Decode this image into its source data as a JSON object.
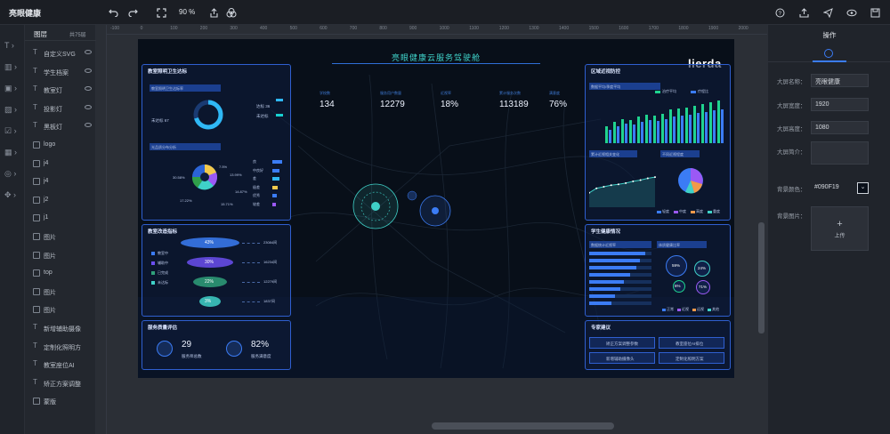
{
  "app": {
    "title": "亮眼健康",
    "zoom": "90 %"
  },
  "toolbar_icons": [
    "undo-icon",
    "redo-icon",
    "fullscreen-icon",
    "export-icon",
    "layers-group-icon",
    "help-icon",
    "upload-icon",
    "send-icon",
    "preview-icon",
    "save-icon"
  ],
  "layers": {
    "title": "图层",
    "count": "共75层",
    "items": [
      {
        "label": "自定义SVG",
        "icon": "text-icon"
      },
      {
        "label": "学生档案",
        "icon": "text-icon"
      },
      {
        "label": "教室灯",
        "icon": "text-icon"
      },
      {
        "label": "投影灯",
        "icon": "text-icon"
      },
      {
        "label": "黑板灯",
        "icon": "text-icon"
      },
      {
        "label": "logo",
        "icon": "image-icon"
      },
      {
        "label": "j4",
        "icon": "image-icon"
      },
      {
        "label": "j4",
        "icon": "image-icon"
      },
      {
        "label": "j2",
        "icon": "image-icon"
      },
      {
        "label": "j1",
        "icon": "image-icon"
      },
      {
        "label": "图片",
        "icon": "image-icon"
      },
      {
        "label": "图片",
        "icon": "image-icon"
      },
      {
        "label": "top",
        "icon": "image-icon"
      },
      {
        "label": "图片",
        "icon": "image-icon"
      },
      {
        "label": "图片",
        "icon": "image-icon"
      },
      {
        "label": "新增辅助摄像",
        "icon": "text-icon"
      },
      {
        "label": "定制化照明方",
        "icon": "text-icon"
      },
      {
        "label": "教室座位AI",
        "icon": "text-icon"
      },
      {
        "label": "矫正方案调整",
        "icon": "text-icon"
      },
      {
        "label": "蒙版",
        "icon": "image-icon"
      }
    ]
  },
  "ruler": {
    "ticks": [
      "-100",
      "0",
      "100",
      "200",
      "300",
      "400",
      "500",
      "600",
      "700",
      "800",
      "900",
      "1000",
      "1100",
      "1200",
      "1300",
      "1400",
      "1500",
      "1600",
      "1700",
      "1800",
      "1900",
      "2000"
    ]
  },
  "right": {
    "title": "操作",
    "fields": [
      {
        "label": "大屏名称：",
        "value": "亮眼健康"
      },
      {
        "label": "大屏宽度：",
        "value": "1920"
      },
      {
        "label": "大屏高度：",
        "value": "1080"
      },
      {
        "label": "大屏简介：",
        "value": ""
      },
      {
        "label": "背景颜色：",
        "value": "#090F19"
      },
      {
        "label": "背景图片：",
        "value": ""
      }
    ],
    "upload": "上传"
  },
  "dash": {
    "title": "亮眼健康云服务驾驶舱",
    "logo": "lierda",
    "stats": [
      {
        "label": "学校数",
        "value": "134"
      },
      {
        "label": "服务用户数量",
        "value": "12279"
      },
      {
        "label": "近视率",
        "value": "18%"
      },
      {
        "label": "累计服务次数",
        "value": "113189"
      },
      {
        "label": "满意度",
        "value": "76%"
      }
    ],
    "p1": {
      "title": "教室照明卫生达标",
      "sub1": "教室照明卫生达标率",
      "donut_center": "未达标 67",
      "legend": [
        "达标 36",
        "未达标"
      ],
      "sub2": "光品质分布分析",
      "pie_labels": [
        "7.5%",
        "13.99%",
        "30.58%",
        "14.87%",
        "17.22%",
        "15.71%"
      ],
      "bar_labels": [
        "良",
        "中良好",
        "差",
        "极差",
        "优秀",
        "较差"
      ],
      "bar_values": [
        0.75,
        0.6,
        0.55,
        0.45,
        0.35,
        0.3
      ]
    },
    "p2": {
      "title": "教室改造指标",
      "funnel": [
        "43%",
        "30%",
        "22%",
        "3%"
      ],
      "values": [
        "23084间",
        "16234间",
        "12279间",
        "1837间"
      ],
      "legend": [
        "教室中",
        "辅助中",
        "已完成",
        "未达标"
      ]
    },
    "p3": {
      "title": "服务质量评估",
      "items": [
        {
          "value": "29",
          "label": "服务师总数"
        },
        {
          "value": "82%",
          "label": "服务满意度"
        }
      ]
    },
    "p4": {
      "title": "区域近视防控",
      "sub": "数据平均/季度平均",
      "legend": [
        "治疗平均",
        "疗程比"
      ],
      "bars": [
        0.35,
        0.45,
        0.5,
        0.48,
        0.55,
        0.6,
        0.58,
        0.62,
        0.7,
        0.72,
        0.75,
        0.78,
        0.82,
        0.85,
        0.88
      ],
      "sub2": "累计近视相关变化",
      "sub3": "不同近视程度",
      "line_vals": [
        0.3,
        0.45,
        0.5,
        0.55,
        0.58,
        0.62,
        0.68,
        0.72,
        0.78,
        0.82
      ],
      "pie": [
        0.55,
        0.25,
        0.12,
        0.08
      ],
      "legend2": [
        "轻度",
        "中度",
        "高度",
        "重度"
      ]
    },
    "p5": {
      "title": "学生健康情况",
      "sub": "数据统计近视率",
      "sub2": "体质健康比率",
      "rows": [
        0.9,
        0.82,
        0.75,
        0.65,
        0.55,
        0.5,
        0.42,
        0.35
      ],
      "circles": [
        "59%",
        "24%",
        "6%",
        "71%"
      ],
      "legend": [
        "正常",
        "近视",
        "远视",
        "其他"
      ]
    },
    "p6": {
      "title": "专家建议",
      "items": [
        "矫正方案调整参数",
        "教室座位AI排位",
        "新增辅助摄像头",
        "定制化照明方案"
      ]
    }
  }
}
